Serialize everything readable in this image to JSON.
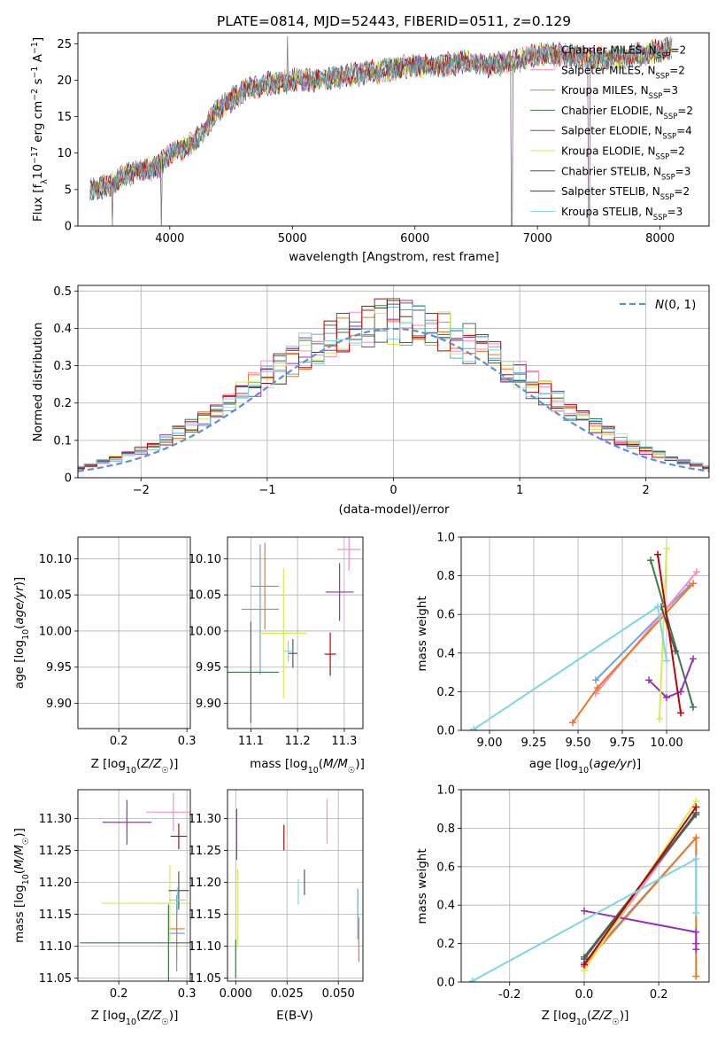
{
  "figure_title": "PLATE=0814, MJD=52443, FIBERID=0511, z=0.129",
  "colors": {
    "Chabrier MILES": "#6fa3e0",
    "Salpeter MILES": "#ff8ac0",
    "Kroupa MILES": "#ee7722",
    "Chabrier ELODIE": "#3d7a46",
    "Salpeter ELODIE": "#9b2fb8",
    "Kroupa ELODIE": "#d8ec50",
    "Chabrier STELIB": "#555555",
    "Salpeter STELIB": "#b40808",
    "Kroupa STELIB": "#7fd6e0",
    "normal_curve": "#5b8fd6"
  },
  "legend_text": {
    "Chabrier MILES": [
      "Chabrier MILES, N",
      "SSP",
      "=2"
    ],
    "Salpeter MILES": [
      "Salpeter MILES, N",
      "SSP",
      "=2"
    ],
    "Kroupa MILES": [
      "Kroupa MILES, N",
      "SSP",
      "=3"
    ],
    "Chabrier ELODIE": [
      "Chabrier ELODIE, N",
      "SSP",
      "=2"
    ],
    "Salpeter ELODIE": [
      "Salpeter ELODIE, N",
      "SSP",
      "=4"
    ],
    "Kroupa ELODIE": [
      "Kroupa ELODIE, N",
      "SSP",
      "=2"
    ],
    "Chabrier STELIB": [
      "Chabrier STELIB, N",
      "SSP",
      "=3"
    ],
    "Salpeter STELIB": [
      "Salpeter STELIB, N",
      "SSP",
      "=2"
    ],
    "Kroupa STELIB": [
      "Kroupa STELIB, N",
      "SSP",
      "=3"
    ]
  },
  "chart_data": [
    {
      "id": "spectrum",
      "type": "line",
      "xlabel": "wavelength [Angstrom, rest frame]",
      "ylabel": "Flux [f_λ 10^-17 erg cm^-2 s^-1 A^-1]",
      "xlim": [
        3250,
        8400
      ],
      "ylim": [
        0,
        26.5
      ],
      "xticks": [
        4000,
        5000,
        6000,
        7000,
        8000
      ],
      "yticks": [
        0,
        5,
        10,
        15,
        20,
        25
      ],
      "grid": false,
      "legend_position": "top-right",
      "data_envelope": {
        "x": [
          3350,
          3500,
          3700,
          3900,
          4000,
          4200,
          4400,
          4600,
          4800,
          5000,
          5200,
          5400,
          5600,
          5800,
          6000,
          6200,
          6400,
          6600,
          6800,
          7000,
          7200,
          7400,
          7600,
          7800,
          8000,
          8100
        ],
        "y": [
          5,
          5.5,
          7.5,
          8,
          10,
          11.5,
          16,
          18.5,
          19.5,
          20,
          20,
          20.5,
          21,
          21.5,
          22,
          22,
          22.5,
          22,
          22.5,
          23.5,
          23.5,
          23,
          23,
          23.5,
          24,
          24.5
        ]
      },
      "sharp_features": [
        {
          "x": 3530,
          "y": 0
        },
        {
          "x": 3930,
          "y": 0
        },
        {
          "x": 6790,
          "y": 0
        },
        {
          "x": 7420,
          "y": 0
        },
        {
          "x": 4960,
          "y": 26
        }
      ]
    },
    {
      "id": "residual_histogram",
      "type": "bar",
      "xlabel": "(data-model)/error",
      "ylabel": "Normed distribution",
      "xlim": [
        -2.5,
        2.5
      ],
      "ylim": [
        0,
        0.515
      ],
      "xticks": [
        -2,
        -1,
        0,
        1,
        2
      ],
      "yticks": [
        0,
        0.1,
        0.2,
        0.3,
        0.4,
        0.5
      ],
      "grid": true,
      "legend_position": "top-right",
      "curve_label": "N(0,1)",
      "bin_width": 0.1
    },
    {
      "id": "age_vs_Z",
      "type": "scatter",
      "xlabel": "Z [log10(Z/Z☉)]",
      "ylabel": "age  [log10(age/yr)]",
      "xlim": [
        0.14,
        0.305
      ],
      "ylim": [
        9.865,
        10.13
      ],
      "xticks": [
        0.2,
        0.3
      ],
      "yticks": [
        9.9,
        9.95,
        10.0,
        10.05,
        10.1
      ],
      "grid": true,
      "points": [
        {
          "lib": "Chabrier MILES",
          "x": 0.285,
          "y": 10.03,
          "xerr": 0.012,
          "yerr": 0.07
        },
        {
          "lib": "Salpeter MILES",
          "x": 0.295,
          "y": 10.113,
          "xerr": 0.04,
          "yerr": 0.02
        },
        {
          "lib": "Kroupa MILES",
          "x": 0.285,
          "y": 10.062,
          "xerr": 0.012,
          "yerr": 0.07
        },
        {
          "lib": "Chabrier ELODIE",
          "x": 0.273,
          "y": 9.943,
          "xerr": 0.13,
          "yerr": 0.07
        },
        {
          "lib": "Salpeter ELODIE",
          "x": 0.212,
          "y": 10.054,
          "xerr": 0.036,
          "yerr": 0.02
        },
        {
          "lib": "Kroupa ELODIE",
          "x": 0.275,
          "y": 9.997,
          "xerr": 0.1,
          "yerr": 0.07
        },
        {
          "lib": "Chabrier STELIB",
          "x": 0.288,
          "y": 9.969,
          "xerr": 0.015,
          "yerr": 0.015
        },
        {
          "lib": "Salpeter STELIB",
          "x": 0.277,
          "y": 9.968,
          "xerr": 0.0,
          "yerr": 0.015
        },
        {
          "lib": "Kroupa STELIB",
          "x": 0.286,
          "y": 9.972,
          "xerr": 0.012,
          "yerr": 0.015
        }
      ]
    },
    {
      "id": "age_vs_mass",
      "type": "scatter",
      "xlabel": "mass [log10(M/M☉)]",
      "ylabel": "",
      "xlim": [
        11.05,
        11.34
      ],
      "ylim": [
        9.865,
        10.13
      ],
      "xticks": [
        11.1,
        11.2,
        11.3
      ],
      "yticks": [
        9.9,
        9.95,
        10.0,
        10.05,
        10.1
      ],
      "grid": true,
      "points": [
        {
          "lib": "Chabrier MILES",
          "x": 11.12,
          "y": 10.03,
          "xerr": 0.04,
          "yerr": 0.09
        },
        {
          "lib": "Salpeter MILES",
          "x": 11.31,
          "y": 10.113,
          "xerr": 0.025,
          "yerr": 0.03
        },
        {
          "lib": "Kroupa MILES",
          "x": 11.13,
          "y": 10.062,
          "xerr": 0.03,
          "yerr": 0.06
        },
        {
          "lib": "Chabrier ELODIE",
          "x": 11.1,
          "y": 9.943,
          "xerr": 0.06,
          "yerr": 0.07
        },
        {
          "lib": "Salpeter ELODIE",
          "x": 11.29,
          "y": 10.054,
          "xerr": 0.03,
          "yerr": 0.04
        },
        {
          "lib": "Kroupa ELODIE",
          "x": 11.17,
          "y": 9.997,
          "xerr": 0.05,
          "yerr": 0.09
        },
        {
          "lib": "Chabrier STELIB",
          "x": 11.19,
          "y": 9.969,
          "xerr": 0.01,
          "yerr": 0.02
        },
        {
          "lib": "Salpeter STELIB",
          "x": 11.27,
          "y": 9.968,
          "xerr": 0.012,
          "yerr": 0.03
        },
        {
          "lib": "Kroupa STELIB",
          "x": 11.18,
          "y": 9.972,
          "xerr": 0.01,
          "yerr": 0.015
        }
      ]
    },
    {
      "id": "weight_vs_age",
      "type": "line",
      "xlabel": "age  [log10(age/yr)]",
      "ylabel": "mass weight",
      "xlim": [
        8.84,
        10.24
      ],
      "ylim": [
        0,
        1.0
      ],
      "xticks": [
        9.0,
        9.25,
        9.5,
        9.75,
        10.0
      ],
      "yticks": [
        0.0,
        0.2,
        0.4,
        0.6,
        0.8,
        1.0
      ],
      "grid": true,
      "series": [
        {
          "lib": "Chabrier MILES",
          "x": [
            9.6,
            10.13
          ],
          "y": [
            0.26,
            0.75
          ]
        },
        {
          "lib": "Salpeter MILES",
          "x": [
            9.6,
            10.17
          ],
          "y": [
            0.19,
            0.82
          ]
        },
        {
          "lib": "Kroupa MILES",
          "x": [
            9.47,
            9.61,
            10.15
          ],
          "y": [
            0.04,
            0.22,
            0.76
          ]
        },
        {
          "lib": "Chabrier ELODIE",
          "x": [
            9.91,
            10.15
          ],
          "y": [
            0.88,
            0.12
          ]
        },
        {
          "lib": "Salpeter ELODIE",
          "x": [
            9.9,
            10.0,
            10.08,
            10.15
          ],
          "y": [
            0.26,
            0.17,
            0.2,
            0.37
          ]
        },
        {
          "lib": "Kroupa ELODIE",
          "x": [
            9.96,
            10.0
          ],
          "y": [
            0.06,
            0.94
          ]
        },
        {
          "lib": "Chabrier STELIB",
          "x": [
            9.97,
            10.05
          ],
          "y": [
            0.64,
            0.41
          ]
        },
        {
          "lib": "Salpeter STELIB",
          "x": [
            9.95,
            10.08
          ],
          "y": [
            0.91,
            0.09
          ]
        },
        {
          "lib": "Kroupa STELIB",
          "x": [
            8.91,
            9.95,
            10.0
          ],
          "y": [
            0.005,
            0.64,
            0.36
          ]
        }
      ]
    },
    {
      "id": "mass_vs_Z",
      "type": "scatter",
      "xlabel": "Z [log10(Z/Z☉)]",
      "ylabel": "mass [log10(M/M☉)]",
      "xlim": [
        0.14,
        0.305
      ],
      "ylim": [
        11.045,
        11.345
      ],
      "xticks": [
        0.2,
        0.3
      ],
      "yticks": [
        11.05,
        11.1,
        11.15,
        11.2,
        11.25,
        11.3
      ],
      "grid": true,
      "points": [
        {
          "lib": "Chabrier MILES",
          "x": 0.285,
          "y": 11.12,
          "xerr": 0.012,
          "yerr": 0.06
        },
        {
          "lib": "Salpeter MILES",
          "x": 0.28,
          "y": 11.31,
          "xerr": 0.04,
          "yerr": 0.03
        },
        {
          "lib": "Kroupa MILES",
          "x": 0.285,
          "y": 11.127,
          "xerr": 0.012,
          "yerr": 0.05
        },
        {
          "lib": "Chabrier ELODIE",
          "x": 0.273,
          "y": 11.105,
          "xerr": 0.13,
          "yerr": 0.06
        },
        {
          "lib": "Salpeter ELODIE",
          "x": 0.212,
          "y": 11.294,
          "xerr": 0.036,
          "yerr": 0.035
        },
        {
          "lib": "Kroupa ELODIE",
          "x": 0.275,
          "y": 11.167,
          "xerr": 0.1,
          "yerr": 0.06
        },
        {
          "lib": "Chabrier STELIB",
          "x": 0.288,
          "y": 11.187,
          "xerr": 0.015,
          "yerr": 0.03
        },
        {
          "lib": "Salpeter STELIB",
          "x": 0.288,
          "y": 11.272,
          "xerr": 0.012,
          "yerr": 0.02
        },
        {
          "lib": "Kroupa STELIB",
          "x": 0.286,
          "y": 11.172,
          "xerr": 0.012,
          "yerr": 0.02
        }
      ]
    },
    {
      "id": "mass_vs_EBV",
      "type": "scatter",
      "xlabel": "E(B-V)",
      "ylabel": "",
      "xlim": [
        -0.004,
        0.062
      ],
      "ylim": [
        11.045,
        11.345
      ],
      "xticks": [
        0.0,
        0.025,
        0.05
      ],
      "yticks": [
        11.05,
        11.1,
        11.15,
        11.2,
        11.25,
        11.3
      ],
      "grid": true,
      "points": [
        {
          "lib": "Chabrier MILES",
          "x": 0.0595,
          "y": 11.15,
          "xerr": 0.0,
          "yerr": 0.04
        },
        {
          "lib": "Salpeter MILES",
          "x": 0.0445,
          "y": 11.295,
          "xerr": 0.0,
          "yerr": 0.035
        },
        {
          "lib": "Kroupa MILES",
          "x": 0.06,
          "y": 11.11,
          "xerr": 0.0,
          "yerr": 0.035
        },
        {
          "lib": "Chabrier ELODIE",
          "x": 0.0,
          "y": 11.08,
          "xerr": 0.0,
          "yerr": 0.03
        },
        {
          "lib": "Salpeter ELODIE",
          "x": 0.0005,
          "y": 11.275,
          "xerr": 0.0,
          "yerr": 0.04
        },
        {
          "lib": "Kroupa ELODIE",
          "x": 0.001,
          "y": 11.16,
          "xerr": 0.0,
          "yerr": 0.06
        },
        {
          "lib": "Chabrier STELIB",
          "x": 0.0335,
          "y": 11.2,
          "xerr": 0.0,
          "yerr": 0.02
        },
        {
          "lib": "Salpeter STELIB",
          "x": 0.0235,
          "y": 11.27,
          "xerr": 0.0,
          "yerr": 0.02
        },
        {
          "lib": "Kroupa STELIB",
          "x": 0.0305,
          "y": 11.185,
          "xerr": 0.0,
          "yerr": 0.02
        }
      ]
    },
    {
      "id": "weight_vs_Z",
      "type": "line",
      "xlabel": "Z [log10(Z/Z☉)]",
      "ylabel": "mass weight",
      "xlim": [
        -0.33,
        0.335
      ],
      "ylim": [
        0,
        1.0
      ],
      "xticks": [
        -0.2,
        0.0,
        0.2
      ],
      "yticks": [
        0.0,
        0.2,
        0.4,
        0.6,
        0.8,
        1.0
      ],
      "grid": true,
      "series": [
        {
          "lib": "Chabrier MILES",
          "x": [
            0.0,
            0.3
          ],
          "y": [
            0.1,
            0.75
          ]
        },
        {
          "lib": "Salpeter MILES",
          "x": [
            0.0,
            0.3
          ],
          "y": [
            0.08,
            0.88
          ]
        },
        {
          "lib": "Kroupa MILES",
          "x": [
            0.0,
            0.3,
            0.3
          ],
          "y": [
            0.09,
            0.75,
            0.03
          ]
        },
        {
          "lib": "Chabrier ELODIE",
          "x": [
            0.0,
            0.3
          ],
          "y": [
            0.13,
            0.87
          ]
        },
        {
          "lib": "Salpeter ELODIE",
          "x": [
            0.0,
            0.3,
            0.3,
            0.3
          ],
          "y": [
            0.37,
            0.26,
            0.2,
            0.17
          ]
        },
        {
          "lib": "Kroupa ELODIE",
          "x": [
            0.0,
            0.3
          ],
          "y": [
            0.06,
            0.94
          ]
        },
        {
          "lib": "Chabrier STELIB",
          "x": [
            0.0,
            0.3
          ],
          "y": [
            0.12,
            0.88
          ]
        },
        {
          "lib": "Salpeter STELIB",
          "x": [
            0.0,
            0.3
          ],
          "y": [
            0.09,
            0.91
          ]
        },
        {
          "lib": "Kroupa STELIB",
          "x": [
            -0.3,
            0.3,
            0.3
          ],
          "y": [
            0.005,
            0.64,
            0.36
          ]
        }
      ]
    }
  ]
}
